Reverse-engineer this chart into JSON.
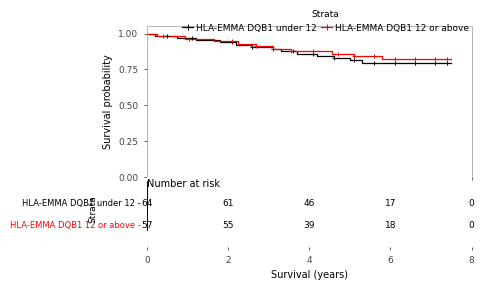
{
  "legend_title": "Strata",
  "legend_entries": [
    "HLA-EMMA DQB1 under 12",
    "HLA-EMMA DQB1 12 or above"
  ],
  "xlabel": "Survival (years)",
  "ylabel": "Survival probability",
  "xlim": [
    0,
    8
  ],
  "ylim": [
    0.0,
    1.05
  ],
  "yticks": [
    0.0,
    0.25,
    0.5,
    0.75,
    1.0
  ],
  "xticks": [
    0,
    2,
    4,
    6,
    8
  ],
  "risk_table_xlabel": "Survival (years)",
  "risk_table_xticks": [
    0,
    2,
    4,
    6,
    8
  ],
  "risk_table_title": "Number at risk",
  "risk_labels": [
    "HLA-EMMA DQB1 under 12",
    "HLA-EMMA DQB1 12 or above"
  ],
  "risk_label_colors": [
    "black",
    "red"
  ],
  "risk_counts": [
    [
      64,
      61,
      46,
      17,
      0
    ],
    [
      57,
      55,
      39,
      18,
      0
    ]
  ],
  "risk_times": [
    0,
    2,
    4,
    6,
    8
  ],
  "group1_times": [
    0,
    0.1,
    0.2,
    0.35,
    0.5,
    0.6,
    0.75,
    0.9,
    1.0,
    1.1,
    1.2,
    1.4,
    1.6,
    1.7,
    1.8,
    1.9,
    2.0,
    2.1,
    2.2,
    2.35,
    2.5,
    2.6,
    2.75,
    2.9,
    3.0,
    3.1,
    3.2,
    3.3,
    3.5,
    3.6,
    3.7,
    3.85,
    4.0,
    4.1,
    4.2,
    4.4,
    4.5,
    4.6,
    4.7,
    4.85,
    5.0,
    5.1,
    5.2,
    5.3,
    5.4,
    5.5,
    5.6,
    5.7,
    5.8,
    5.9,
    6.0,
    6.1,
    6.2,
    6.3,
    6.4,
    6.5,
    6.6,
    6.7,
    6.8,
    6.9,
    7.0,
    7.1,
    7.2,
    7.3,
    7.4,
    7.5
  ],
  "group1_surv": [
    1.0,
    1.0,
    0.984,
    0.984,
    0.984,
    0.984,
    0.969,
    0.969,
    0.969,
    0.969,
    0.953,
    0.953,
    0.953,
    0.953,
    0.938,
    0.938,
    0.938,
    0.938,
    0.922,
    0.922,
    0.922,
    0.906,
    0.906,
    0.906,
    0.906,
    0.891,
    0.891,
    0.875,
    0.875,
    0.875,
    0.859,
    0.859,
    0.859,
    0.859,
    0.844,
    0.844,
    0.844,
    0.828,
    0.828,
    0.828,
    0.813,
    0.813,
    0.813,
    0.797,
    0.797,
    0.797,
    0.797,
    0.797,
    0.797,
    0.797,
    0.797,
    0.797,
    0.797,
    0.797,
    0.797,
    0.797,
    0.797,
    0.797,
    0.797,
    0.797,
    0.797,
    0.797,
    0.797,
    0.797,
    0.797,
    0.797
  ],
  "group1_censor_times": [
    0.5,
    1.1,
    2.1,
    2.6,
    3.1,
    3.6,
    4.1,
    4.6,
    5.1,
    5.6,
    6.1,
    6.6,
    7.1,
    7.4
  ],
  "group1_censor_surv": [
    0.984,
    0.969,
    0.938,
    0.906,
    0.891,
    0.875,
    0.859,
    0.828,
    0.813,
    0.797,
    0.797,
    0.797,
    0.797,
    0.797
  ],
  "group2_times": [
    0,
    0.05,
    0.15,
    0.25,
    0.4,
    0.55,
    0.65,
    0.8,
    0.95,
    1.05,
    1.15,
    1.3,
    1.5,
    1.65,
    1.75,
    1.85,
    2.0,
    2.1,
    2.25,
    2.4,
    2.55,
    2.7,
    2.85,
    3.0,
    3.1,
    3.25,
    3.4,
    3.55,
    3.65,
    3.8,
    4.0,
    4.1,
    4.25,
    4.4,
    4.55,
    4.7,
    4.85,
    5.0,
    5.1,
    5.2,
    5.4,
    5.6,
    5.65,
    5.8,
    5.9,
    6.0,
    6.1,
    6.2,
    6.3,
    6.4,
    6.5,
    6.6,
    6.7,
    6.8,
    7.0,
    7.1,
    7.2,
    7.3,
    7.4,
    7.5
  ],
  "group2_surv": [
    1.0,
    1.0,
    1.0,
    0.982,
    0.982,
    0.982,
    0.982,
    0.982,
    0.965,
    0.965,
    0.965,
    0.965,
    0.965,
    0.947,
    0.947,
    0.947,
    0.947,
    0.947,
    0.93,
    0.93,
    0.93,
    0.912,
    0.912,
    0.912,
    0.895,
    0.895,
    0.895,
    0.877,
    0.877,
    0.877,
    0.877,
    0.877,
    0.877,
    0.877,
    0.86,
    0.86,
    0.86,
    0.86,
    0.842,
    0.842,
    0.842,
    0.842,
    0.842,
    0.825,
    0.825,
    0.825,
    0.825,
    0.825,
    0.825,
    0.825,
    0.825,
    0.825,
    0.825,
    0.825,
    0.825,
    0.825,
    0.825,
    0.825,
    0.825,
    0.825
  ],
  "group2_censor_times": [
    0.4,
    1.05,
    2.1,
    2.7,
    3.1,
    3.55,
    4.1,
    4.7,
    5.1,
    5.6,
    6.1,
    6.6,
    7.1,
    7.4
  ],
  "group2_censor_surv": [
    0.982,
    0.965,
    0.947,
    0.912,
    0.895,
    0.877,
    0.877,
    0.86,
    0.842,
    0.842,
    0.825,
    0.825,
    0.825,
    0.825
  ],
  "background_color": "#ffffff",
  "line_color_1": "black",
  "line_color_2": "red",
  "spine_color": "#aaaaaa",
  "fontsize_axis_label": 7,
  "fontsize_tick": 6.5,
  "fontsize_legend": 6.5,
  "fontsize_risk_title": 7,
  "fontsize_risk_label": 6,
  "fontsize_risk_count": 6.5,
  "fontsize_strata": 6.5
}
